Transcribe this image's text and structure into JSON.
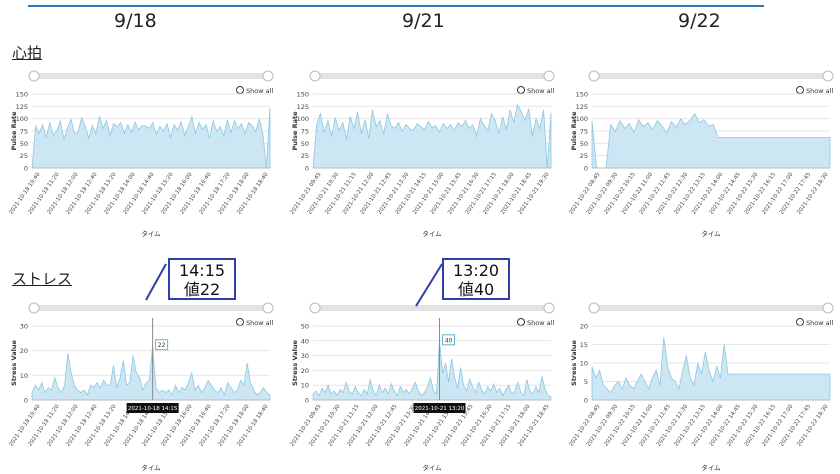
{
  "header": {
    "dates": [
      "9/18",
      "9/21",
      "9/22"
    ]
  },
  "sections": {
    "pulse_label": "心拍",
    "stress_label": "ストレス"
  },
  "callouts": [
    {
      "time": "14:15",
      "value_text": "値22"
    },
    {
      "time": "13:20",
      "value_text": "値40"
    }
  ],
  "colors": {
    "area_fill": "#cde6f3",
    "area_stroke": "#8ec6e3",
    "grid": "#e6e6e6",
    "callout_border": "#2e3fa8",
    "accent_line": "#2e75b6"
  },
  "chart_data": [
    {
      "type": "area",
      "date": "9/18",
      "ylabel": "Pulse Rate",
      "xlabel": "タイム",
      "ylim": [
        0,
        150
      ],
      "yticks": [
        0,
        25,
        50,
        75,
        100,
        125,
        150
      ],
      "show_all": "Show all",
      "x_ticks": [
        "2021-10-18 10:40",
        "2021-10-18 11:20",
        "2021-10-18 12:00",
        "2021-10-18 12:40",
        "2021-10-18 13:20",
        "2021-10-18 14:00",
        "2021-10-18 14:40",
        "2021-10-18 15:20",
        "2021-10-18 16:00",
        "2021-10-18 16:40",
        "2021-10-18 17:20",
        "2021-10-18 18:00",
        "2021-10-18 18:40"
      ],
      "values": [
        0,
        85,
        70,
        88,
        62,
        92,
        66,
        76,
        95,
        58,
        82,
        99,
        68,
        74,
        102,
        85,
        60,
        86,
        70,
        105,
        80,
        96,
        65,
        90,
        84,
        92,
        70,
        88,
        72,
        93,
        78,
        86,
        85,
        80,
        92,
        68,
        84,
        75,
        90,
        62,
        88,
        76,
        94,
        66,
        84,
        104,
        70,
        92,
        78,
        88,
        60,
        96,
        74,
        84,
        65,
        98,
        72,
        96,
        80,
        90,
        70,
        92,
        86,
        74,
        100,
        68,
        0,
        122
      ]
    },
    {
      "type": "area",
      "date": "9/21",
      "ylabel": "Pulse Rate",
      "xlabel": "タイム",
      "ylim": [
        0,
        150
      ],
      "yticks": [
        0,
        25,
        50,
        75,
        100,
        125,
        150
      ],
      "show_all": "Show all",
      "x_ticks": [
        "2021-10-21 09:45",
        "2021-10-21 10:30",
        "2021-10-21 11:15",
        "2021-10-21 12:00",
        "2021-10-21 12:45",
        "2021-10-21 13:30",
        "2021-10-21 14:15",
        "2021-10-21 15:00",
        "2021-10-21 15:45",
        "2021-10-21 16:30",
        "2021-10-21 17:15",
        "2021-10-21 18:00",
        "2021-10-21 18:45",
        "2021-10-21 19:30"
      ],
      "values": [
        0,
        88,
        110,
        72,
        96,
        64,
        102,
        76,
        92,
        58,
        105,
        80,
        114,
        70,
        98,
        60,
        118,
        84,
        96,
        68,
        110,
        86,
        80,
        92,
        74,
        88,
        80,
        76,
        90,
        84,
        78,
        94,
        82,
        86,
        72,
        90,
        80,
        88,
        76,
        92,
        84,
        96,
        80,
        88,
        64,
        100,
        86,
        76,
        110,
        96,
        70,
        104,
        78,
        118,
        92,
        128,
        114,
        96,
        120,
        64,
        100,
        80,
        118,
        0,
        112
      ]
    },
    {
      "type": "area",
      "date": "9/22",
      "ylabel": "Pulse Rate",
      "xlabel": "タイム",
      "ylim": [
        0,
        150
      ],
      "yticks": [
        0,
        25,
        50,
        75,
        100,
        125,
        150
      ],
      "show_all": "Show all",
      "x_ticks": [
        "2021-10-22 08:45",
        "2021-10-22 09:30",
        "2021-10-22 10:15",
        "2021-10-22 11:00",
        "2021-10-22 11:45",
        "2021-10-22 12:30",
        "2021-10-22 13:15",
        "2021-10-22 14:00",
        "2021-10-22 14:45",
        "2021-10-22 15:30",
        "2021-10-22 16:15",
        "2021-10-22 17:00",
        "2021-10-22 17:45",
        "2021-10-22 18:30"
      ],
      "values": [
        95,
        0,
        0,
        0,
        88,
        74,
        96,
        80,
        90,
        72,
        98,
        84,
        92,
        78,
        96,
        86,
        70,
        94,
        82,
        100,
        88,
        96,
        110,
        92,
        98,
        85,
        88,
        62,
        62,
        62,
        62,
        62,
        62,
        62,
        62,
        62,
        62,
        62,
        62,
        62,
        62,
        62,
        62,
        62,
        62,
        62,
        62,
        62,
        62,
        62,
        62,
        62
      ]
    },
    {
      "type": "area",
      "date": "9/18",
      "ylabel": "Stress Value",
      "xlabel": "タイム",
      "ylim": [
        0,
        30
      ],
      "yticks": [
        0,
        10,
        20,
        30
      ],
      "show_all": "Show all",
      "tooltip": {
        "value": "22",
        "time": "2021-10-18 14:15",
        "index": 37
      },
      "x_ticks": [
        "2021-10-18 10:40",
        "2021-10-18 11:20",
        "2021-10-18 12:00",
        "2021-10-18 12:40",
        "2021-10-18 13:20",
        "2021-10-18 14:00",
        "2021-10-18 14:40",
        "2021-10-18 15:20",
        "2021-10-18 16:00",
        "2021-10-18 16:40",
        "2021-10-18 17:20",
        "2021-10-18 18:00",
        "2021-10-18 18:40"
      ],
      "values": [
        3,
        6,
        4,
        7,
        3,
        5,
        4,
        9,
        5,
        3,
        6,
        19,
        11,
        6,
        4,
        3,
        4,
        2,
        6,
        5,
        7,
        5,
        8,
        6,
        6,
        14,
        5,
        9,
        16,
        6,
        7,
        18,
        11,
        9,
        4,
        7,
        8,
        22,
        5,
        3,
        4,
        3,
        4,
        2,
        6,
        3,
        5,
        4,
        7,
        11,
        4,
        6,
        3,
        5,
        8,
        6,
        4,
        3,
        5,
        2,
        7,
        5,
        3,
        4,
        8,
        6,
        15,
        7,
        4,
        2,
        3,
        5,
        3,
        2
      ]
    },
    {
      "type": "area",
      "date": "9/21",
      "ylabel": "Stress Value",
      "xlabel": "タイム",
      "ylim": [
        0,
        50
      ],
      "yticks": [
        0,
        10,
        20,
        30,
        40,
        50
      ],
      "show_all": "Show all",
      "tooltip": {
        "value": "40",
        "time": "2021-10-21 13:20",
        "index": 42
      },
      "x_ticks": [
        "2021-10-21 09:45",
        "2021-10-21 10:30",
        "2021-10-21 11:15",
        "2021-10-21 12:00",
        "2021-10-21 12:45",
        "2021-10-21 13:30",
        "2021-10-21 14:15",
        "2021-10-21 15:00",
        "2021-10-21 15:45",
        "2021-10-21 16:30",
        "2021-10-21 17:15",
        "2021-10-21 18:00",
        "2021-10-21 18:45"
      ],
      "values": [
        4,
        6,
        3,
        8,
        5,
        10,
        4,
        6,
        3,
        7,
        5,
        12,
        6,
        4,
        9,
        5,
        3,
        7,
        4,
        14,
        6,
        3,
        10,
        5,
        8,
        4,
        11,
        6,
        3,
        9,
        5,
        7,
        4,
        8,
        12,
        6,
        3,
        5,
        9,
        15,
        6,
        4,
        40,
        18,
        25,
        12,
        28,
        15,
        8,
        22,
        10,
        6,
        14,
        9,
        5,
        12,
        7,
        4,
        9,
        6,
        11,
        5,
        8,
        3,
        7,
        10,
        4,
        6,
        12,
        5,
        3,
        14,
        6,
        4,
        9,
        5,
        16,
        7,
        3,
        2
      ]
    },
    {
      "type": "area",
      "date": "9/22",
      "ylabel": "Stress Value",
      "xlabel": "タイム",
      "ylim": [
        0,
        20
      ],
      "yticks": [
        0,
        5,
        10,
        15,
        20
      ],
      "show_all": "Show all",
      "x_ticks": [
        "2021-10-22 08:45",
        "2021-10-22 09:30",
        "2021-10-22 10:15",
        "2021-10-22 11:00",
        "2021-10-22 11:45",
        "2021-10-22 12:30",
        "2021-10-22 13:15",
        "2021-10-22 14:00",
        "2021-10-22 14:45",
        "2021-10-22 15:30",
        "2021-10-22 16:15",
        "2021-10-22 17:00",
        "2021-10-22 17:45",
        "2021-10-22 18:30"
      ],
      "values": [
        9,
        6,
        8,
        4,
        3,
        2,
        4,
        5,
        3,
        6,
        4,
        3,
        5,
        7,
        5,
        3,
        6,
        8,
        4,
        17,
        9,
        6,
        5,
        3,
        8,
        12,
        6,
        4,
        10,
        7,
        13,
        8,
        5,
        9,
        6,
        15,
        7,
        7,
        7,
        7,
        7,
        7,
        7,
        7,
        7,
        7,
        7,
        7,
        7,
        7,
        7,
        7,
        7,
        7,
        7,
        7,
        7,
        7,
        7,
        7,
        7,
        7,
        7,
        7
      ]
    }
  ]
}
